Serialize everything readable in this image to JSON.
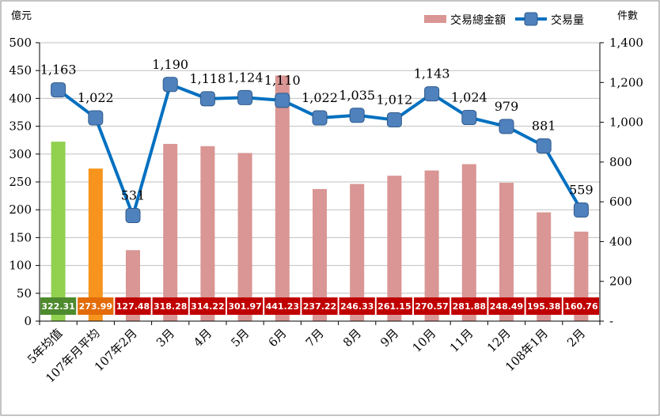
{
  "chart_data": {
    "type": "bar",
    "left_unit": "億元",
    "right_unit": "件數",
    "categories": [
      "5年均值",
      "107年月平均",
      "107年2月",
      "3月",
      "4月",
      "5月",
      "6月",
      "7月",
      "8月",
      "9月",
      "10月",
      "11月",
      "12月",
      "108年1月",
      "2月"
    ],
    "series": [
      {
        "name": "交易總金額",
        "type": "bar",
        "axis": "left",
        "color": "#d99694",
        "values": [
          322.31,
          273.99,
          127.48,
          318.28,
          314.22,
          301.97,
          441.23,
          237.22,
          246.33,
          261.15,
          270.57,
          281.88,
          248.49,
          195.38,
          160.76
        ],
        "value_labels": [
          "322.31",
          "273.99",
          "127.48",
          "318.28",
          "314.22",
          "301.97",
          "441.23",
          "237.22",
          "246.33",
          "261.15",
          "270.57",
          "281.88",
          "248.49",
          "195.38",
          "160.76"
        ],
        "bar_colors": [
          "#92d050",
          "#f7941d",
          "#d99694",
          "#d99694",
          "#d99694",
          "#d99694",
          "#d99694",
          "#d99694",
          "#d99694",
          "#d99694",
          "#d99694",
          "#d99694",
          "#d99694",
          "#d99694",
          "#d99694"
        ],
        "label_box_colors": [
          "#4e8a2e",
          "#e36c09",
          "#c00000",
          "#c00000",
          "#c00000",
          "#c00000",
          "#c00000",
          "#c00000",
          "#c00000",
          "#c00000",
          "#c00000",
          "#c00000",
          "#c00000",
          "#c00000",
          "#c00000"
        ]
      },
      {
        "name": "交易量",
        "type": "line",
        "axis": "right",
        "color": "#0070c0",
        "marker_color": "#4f81bd",
        "values": [
          1163,
          1022,
          531,
          1190,
          1118,
          1124,
          1110,
          1022,
          1035,
          1012,
          1143,
          1024,
          979,
          881,
          559
        ],
        "value_labels": [
          "1,163",
          "1,022",
          "531",
          "1,190",
          "1,118",
          "1,124",
          "1,110",
          "1,022",
          "1,035",
          "1,012",
          "1,143",
          "1,024",
          "979",
          "881",
          "559"
        ]
      }
    ],
    "left_axis": {
      "min": 0,
      "max": 500,
      "step": 50,
      "tick_labels": [
        "0",
        "50",
        "100",
        "150",
        "200",
        "250",
        "300",
        "350",
        "400",
        "450",
        "500"
      ]
    },
    "right_axis": {
      "min": 0,
      "max": 1400,
      "step": 200,
      "tick_labels": [
        "-",
        "200",
        "400",
        "600",
        "800",
        "1,000",
        "1,200",
        "1,400"
      ]
    },
    "grid": true,
    "legend_position": "top-right"
  }
}
